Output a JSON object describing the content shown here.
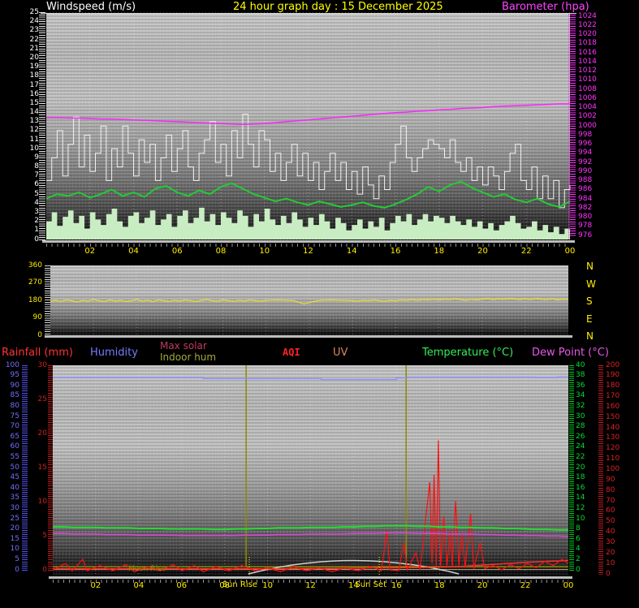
{
  "header": {
    "left_label": "Windspeed (m/s)",
    "title": "24 hour graph day : 15 December 2025",
    "right_label": "Barometer (hpa)"
  },
  "colors": {
    "title": "#ffff00",
    "windspeed_label": "#ffffff",
    "barometer_label": "#ff44ff",
    "hour_labels": "#ffee00",
    "wind_axis": "#ffffff",
    "baro_axis": "#ff33ff",
    "direction_axis": "#ffee00",
    "humidity_axis": "#7070ff",
    "rain_axis": "#cc2020",
    "temp_axis": "#00dd33",
    "right_red_axis": "#dd2222"
  },
  "legend": {
    "rainfall": "Rainfall (mm)",
    "humidity": "Humidity",
    "max_solar": "Max solar",
    "indoor_hum": "Indoor hum",
    "aqi": "AQI",
    "uv": "UV",
    "temperature": "Temperature (°C)",
    "dew_point": "Dew Point (°C)"
  },
  "chart_data": [
    {
      "type": "line",
      "panel": "wind_and_barometer",
      "x_range_hours": [
        0,
        24
      ],
      "x_tick_labels": [
        "02",
        "04",
        "06",
        "08",
        "10",
        "12",
        "14",
        "16",
        "18",
        "20",
        "22",
        "00"
      ],
      "left_axis": {
        "label": "Windspeed (m/s)",
        "min": 0,
        "max": 25,
        "step": 1
      },
      "right_axis": {
        "label": "Barometer (hpa)",
        "min": 976,
        "max": 1024,
        "step": 2
      },
      "series": [
        {
          "name": "wind_gust",
          "color": "#f2f2f2",
          "axis": "left",
          "values": [
            6.5,
            9,
            12,
            7,
            10.5,
            13.5,
            8,
            11.5,
            7.5,
            9.5,
            12.5,
            6.5,
            10,
            8,
            12.5,
            9.5,
            7,
            11,
            8.5,
            10.5,
            6.5,
            9,
            11.5,
            7.5,
            10,
            12,
            8,
            6.5,
            9.5,
            11,
            13,
            8.5,
            10.5,
            7,
            12,
            9,
            13.8,
            10.5,
            8,
            12,
            11,
            7.5,
            9.5,
            6.5,
            8.5,
            10.5,
            7,
            9.5,
            6.5,
            8.5,
            5.5,
            7.5,
            9.5,
            6.5,
            8.5,
            5.5,
            7.5,
            5,
            8,
            6,
            4.5,
            7,
            5.5,
            8.5,
            10.5,
            12.5,
            9,
            7.5,
            9,
            10,
            11,
            10.5,
            10,
            9,
            11,
            8.5,
            7.5,
            9,
            6.5,
            8,
            6,
            8,
            7,
            5.5,
            7.5,
            9.5,
            10.5,
            6.5,
            5.5,
            8,
            4.5,
            7,
            4.5,
            6.5,
            3.5,
            5.5,
            6
          ]
        },
        {
          "name": "wind_avg",
          "color": "#22cc33",
          "axis": "left",
          "values": [
            4.5,
            5,
            4.8,
            5.2,
            4.6,
            5,
            5.5,
            4.8,
            5.2,
            4.7,
            5.6,
            5.9,
            5.2,
            4.8,
            5.4,
            5,
            5.8,
            6.2,
            5.6,
            5,
            4.6,
            4.2,
            4.5,
            4.1,
            3.8,
            4.2,
            3.9,
            3.6,
            3.8,
            4.1,
            3.7,
            3.5,
            3.9,
            4.4,
            5,
            5.8,
            5.3,
            6,
            6.4,
            5.7,
            5.2,
            4.7,
            5,
            4.4,
            4.1,
            4.5,
            3.9,
            3.6,
            4.2
          ]
        },
        {
          "name": "wind_low",
          "color": "#c9edc2",
          "axis": "left",
          "values": [
            2,
            3,
            1.5,
            2.5,
            3.2,
            1.8,
            2.6,
            1.2,
            3,
            2.2,
            1.6,
            2.8,
            3.4,
            2,
            1.4,
            2.6,
            3,
            1.8,
            2.4,
            3.2,
            1.6,
            2.2,
            2.8,
            1.4,
            2.6,
            3.2,
            1.8,
            2.4,
            3.5,
            2,
            2.8,
            1.6,
            3,
            2.4,
            1.8,
            3.2,
            2.6,
            1.4,
            2.8,
            2,
            3.4,
            2.2,
            1.6,
            2.6,
            1.8,
            3,
            2.2,
            1.4,
            2.4,
            1.6,
            2.8,
            2,
            1.2,
            2.4,
            1.8,
            1,
            1.6,
            2.2,
            1.2,
            2,
            1.4,
            2.4,
            1,
            1.8,
            2.6,
            2,
            2.8,
            1.6,
            2.2,
            2.8,
            2,
            2.6,
            2.4,
            1.8,
            2.6,
            2,
            1.6,
            2.2,
            1.4,
            2,
            1.2,
            1.8,
            1,
            1.6,
            2,
            2.6,
            1.8,
            1.2,
            1.4,
            2,
            1,
            1.6,
            0.8,
            1.4,
            0.6,
            1.2,
            1.5
          ]
        },
        {
          "name": "barometer",
          "color": "#ff22ff",
          "axis": "right",
          "values": [
            1001.8,
            1001.8,
            1001.7,
            1001.7,
            1001.6,
            1001.5,
            1001.5,
            1001.4,
            1001.3,
            1001.2,
            1001.1,
            1001.0,
            1000.9,
            1000.8,
            1000.7,
            1000.6,
            1000.5,
            1000.4,
            1000.3,
            1000.4,
            1000.5,
            1000.7,
            1000.9,
            1001.1,
            1001.3,
            1001.5,
            1001.7,
            1001.9,
            1002.1,
            1002.3,
            1002.5,
            1002.7,
            1002.9,
            1003.0,
            1003.2,
            1003.3,
            1003.5,
            1003.6,
            1003.8,
            1003.9,
            1004.0,
            1004.2,
            1004.3,
            1004.4,
            1004.5,
            1004.6,
            1004.7,
            1004.8,
            1004.8
          ]
        }
      ]
    },
    {
      "type": "line",
      "panel": "wind_direction",
      "left_axis": {
        "min": 0,
        "max": 360,
        "labels": [
          360,
          270,
          180,
          90,
          0
        ]
      },
      "right_labels": [
        "N",
        "W",
        "S",
        "E",
        "N"
      ],
      "series": [
        {
          "name": "direction_degrees",
          "color": "#f0e020",
          "values": [
            176,
            180,
            174,
            182,
            178,
            172,
            180,
            176,
            184,
            178,
            174,
            182,
            176,
            180,
            174,
            178,
            184,
            176,
            180,
            174,
            182,
            178,
            174,
            180,
            176,
            182,
            178,
            174,
            180,
            184,
            178,
            176,
            182,
            178,
            174,
            180,
            176,
            182,
            178,
            176,
            180,
            181,
            182,
            181,
            180,
            179,
            170,
            162,
            168,
            175,
            180,
            181,
            182,
            181,
            180,
            179,
            178,
            176,
            180,
            178,
            182,
            178,
            176,
            180,
            178,
            182,
            180,
            184,
            180,
            184,
            182,
            186,
            182,
            186,
            184,
            188,
            184,
            180,
            186,
            182,
            186,
            190,
            184,
            188,
            186,
            190,
            188,
            184,
            188,
            184,
            190,
            186,
            184,
            188,
            182,
            186,
            185
          ]
        }
      ]
    },
    {
      "type": "line",
      "panel": "rain_humidity_temp_aqi",
      "x_tick_labels": [
        "02",
        "04",
        "06",
        "08",
        "10",
        "12",
        "14",
        "16",
        "18",
        "20",
        "22",
        "00"
      ],
      "axes": {
        "humidity": {
          "min": 0,
          "max": 100,
          "step": 5
        },
        "rain": {
          "min": 0,
          "max": 30,
          "step": 5
        },
        "temperature": {
          "min": 0,
          "max": 40,
          "step": 2
        },
        "right_red": {
          "min": 0,
          "max": 200,
          "step": 10
        }
      },
      "series": [
        {
          "name": "humidity",
          "color": "#9090ff",
          "axis": "humidity",
          "values": [
            94,
            94,
            94,
            94,
            94,
            94,
            94,
            94,
            94,
            94,
            94,
            94,
            94,
            94,
            93.5,
            93.5,
            93.5,
            93.5,
            93.5,
            93.5,
            93.5,
            93.5,
            93.5,
            93.5,
            93.5,
            93,
            93,
            93,
            93,
            93,
            93,
            93,
            93.8,
            94.2,
            94.2,
            94.2,
            94.2,
            94.2,
            94.2,
            94.2,
            94.2,
            94.2,
            94.2,
            94.2,
            94.2,
            94,
            94,
            94.3,
            94.3
          ]
        },
        {
          "name": "temperature",
          "color": "#22dd33",
          "axis": "temperature",
          "values": [
            8.4,
            8.4,
            8.3,
            8.3,
            8.3,
            8.2,
            8.2,
            8.2,
            8.1,
            8.1,
            8.1,
            8.0,
            8.0,
            8.0,
            8.0,
            7.9,
            7.9,
            8.0,
            8.0,
            8.1,
            8.1,
            8.2,
            8.2,
            8.2,
            8.3,
            8.3,
            8.3,
            8.4,
            8.4,
            8.5,
            8.5,
            8.6,
            8.6,
            8.6,
            8.5,
            8.5,
            8.4,
            8.4,
            8.3,
            8.3,
            8.2,
            8.2,
            8.1,
            8.1,
            8.0,
            7.9,
            7.9,
            7.8,
            7.8
          ]
        },
        {
          "name": "dew_point",
          "color": "#dd44dd",
          "axis": "temperature",
          "values": [
            7.1,
            7.1,
            7.0,
            7.0,
            7.0,
            6.9,
            6.9,
            6.9,
            6.8,
            6.8,
            6.8,
            6.8,
            6.7,
            6.7,
            6.7,
            6.7,
            6.7,
            6.7,
            6.8,
            6.8,
            6.8,
            6.9,
            6.9,
            6.9,
            7.0,
            7.0,
            7.0,
            7.0,
            7.1,
            7.1,
            7.1,
            7.2,
            7.2,
            7.2,
            7.1,
            7.1,
            7.1,
            7.0,
            7.0,
            7.0,
            6.9,
            6.9,
            6.8,
            6.8,
            6.7,
            6.7,
            6.6,
            6.6,
            6.5
          ]
        },
        {
          "name": "aqi",
          "color": "#ff1010",
          "axis": "right_red",
          "points": [
            [
              0,
              4
            ],
            [
              0.6,
              10
            ],
            [
              0.9,
              3
            ],
            [
              1.4,
              14
            ],
            [
              1.6,
              3
            ],
            [
              2.2,
              8
            ],
            [
              2.8,
              3
            ],
            [
              3.4,
              9
            ],
            [
              3.8,
              2
            ],
            [
              4.4,
              7
            ],
            [
              5,
              3
            ],
            [
              5.6,
              9
            ],
            [
              6,
              3
            ],
            [
              6.6,
              8
            ],
            [
              7,
              2
            ],
            [
              7.6,
              7
            ],
            [
              8.2,
              3
            ],
            [
              8.8,
              8
            ],
            [
              9.4,
              3
            ],
            [
              10,
              6
            ],
            [
              10.6,
              2
            ],
            [
              11.2,
              7
            ],
            [
              11.8,
              3
            ],
            [
              12.4,
              6
            ],
            [
              13,
              2
            ],
            [
              13.6,
              6
            ],
            [
              14.2,
              3
            ],
            [
              14.8,
              7
            ],
            [
              15.3,
              3
            ],
            [
              15.55,
              42
            ],
            [
              15.7,
              4
            ],
            [
              16.1,
              3
            ],
            [
              16.35,
              30
            ],
            [
              16.5,
              4
            ],
            [
              16.9,
              20
            ],
            [
              17.1,
              4
            ],
            [
              17.55,
              88
            ],
            [
              17.65,
              10
            ],
            [
              17.75,
              95
            ],
            [
              17.85,
              8
            ],
            [
              17.95,
              128
            ],
            [
              18.05,
              6
            ],
            [
              18.2,
              55
            ],
            [
              18.35,
              8
            ],
            [
              18.5,
              42
            ],
            [
              18.6,
              6
            ],
            [
              18.75,
              70
            ],
            [
              18.9,
              8
            ],
            [
              19.05,
              38
            ],
            [
              19.2,
              6
            ],
            [
              19.45,
              58
            ],
            [
              19.6,
              5
            ],
            [
              19.9,
              30
            ],
            [
              20.1,
              5
            ],
            [
              20.5,
              8
            ],
            [
              20.9,
              4
            ],
            [
              21.3,
              9
            ],
            [
              21.7,
              5
            ],
            [
              22.1,
              10
            ],
            [
              22.5,
              6
            ],
            [
              22.9,
              12
            ],
            [
              23.3,
              8
            ],
            [
              23.7,
              14
            ],
            [
              24,
              10
            ]
          ]
        },
        {
          "name": "rainfall",
          "color": "#ff3030",
          "axis": "rain",
          "points": [
            [
              0,
              0.15
            ],
            [
              2,
              0.15
            ],
            [
              4,
              0.15
            ],
            [
              6,
              0.15
            ],
            [
              8,
              0.15
            ],
            [
              10,
              0.15
            ],
            [
              12,
              0.2
            ],
            [
              13,
              0.2
            ],
            [
              14,
              0.25
            ],
            [
              15,
              0.3
            ],
            [
              16,
              0.3
            ],
            [
              17,
              0.35
            ],
            [
              18,
              0.4
            ],
            [
              19,
              0.5
            ],
            [
              19.5,
              0.6
            ],
            [
              20,
              0.7
            ],
            [
              20.5,
              0.8
            ],
            [
              21,
              0.9
            ],
            [
              21.5,
              1.0
            ],
            [
              22,
              1.1
            ],
            [
              22.5,
              1.15
            ],
            [
              23,
              1.25
            ],
            [
              23.5,
              1.3
            ],
            [
              24,
              1.4
            ]
          ]
        }
      ],
      "annotations": {
        "sun_rise_text": "Sun Rise",
        "sun_set_text": "Sun Set",
        "moon_rise_text": "Moon Rise",
        "sun_rise_hour": 9.0,
        "sun_set_hour": 16.45,
        "moon_arc": {
          "start_hour": 9.1,
          "peak_hour": 14,
          "end_hour": 18.9
        }
      }
    }
  ]
}
